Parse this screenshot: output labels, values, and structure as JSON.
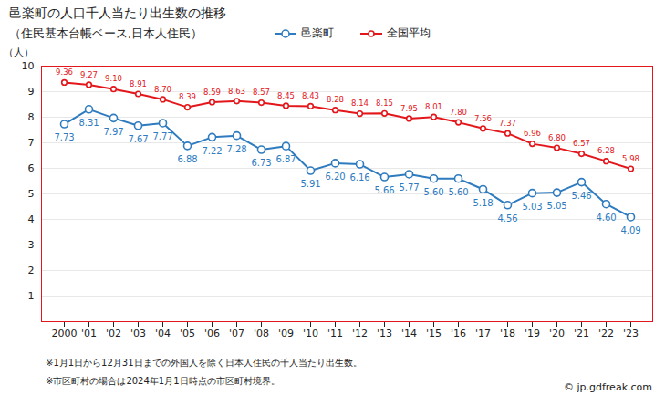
{
  "chart_data": {
    "type": "line",
    "title": "邑楽町の人口千人当たり出生数の推移",
    "subtitle": "（住民基本台帳ベース,日本人住民）",
    "y_label": "（人）",
    "notes": [
      "※1月1日から12月31日までの外国人を除く日本人住民の千人当たり出生数。",
      "※市区町村の場合は2024年1月1日時点の市区町村境界。"
    ],
    "source": "© jp.gdfreak.com",
    "categories": [
      "2000",
      "'01",
      "'02",
      "'03",
      "'04",
      "'05",
      "'06",
      "'07",
      "'08",
      "'09",
      "'10",
      "'11",
      "'12",
      "'13",
      "'14",
      "'15",
      "'16",
      "'17",
      "'18",
      "'19",
      "'20",
      "'21",
      "'22",
      "'23"
    ],
    "series": [
      {
        "name": "邑楽町",
        "color": "#2e7bbf",
        "marker": "circle",
        "values": [
          7.73,
          8.31,
          7.97,
          7.67,
          7.77,
          6.88,
          7.22,
          7.28,
          6.73,
          6.87,
          5.91,
          6.2,
          6.16,
          5.66,
          5.77,
          5.6,
          5.6,
          5.18,
          4.56,
          5.03,
          5.05,
          5.46,
          4.6,
          4.09
        ],
        "value_labels": [
          "7.73",
          "8.31",
          "7.97",
          "7.67",
          "7.77",
          "6.88",
          "7.22",
          "7.28",
          "6.73",
          "6.87",
          "5.91",
          "6.20",
          "6.16",
          "5.66",
          "5.77",
          "5.60",
          "5.60",
          "5.18",
          "4.56",
          "5.03",
          "5.05",
          "5.46",
          "4.60",
          "4.09"
        ]
      },
      {
        "name": "全国平均",
        "color": "#e3171b",
        "marker": "circle",
        "values": [
          9.36,
          9.27,
          9.1,
          8.91,
          8.7,
          8.39,
          8.59,
          8.63,
          8.57,
          8.45,
          8.43,
          8.28,
          8.14,
          8.15,
          7.95,
          8.01,
          7.8,
          7.56,
          7.37,
          6.96,
          6.8,
          6.57,
          6.28,
          5.98
        ],
        "value_labels": [
          "9.36",
          "9.27",
          "9.10",
          "8.91",
          "8.70",
          "8.39",
          "8.59",
          "8.63",
          "8.57",
          "8.45",
          "8.43",
          "8.28",
          "8.14",
          "8.15",
          "7.95",
          "8.01",
          "7.80",
          "7.56",
          "7.37",
          "6.96",
          "6.80",
          "6.57",
          "6.28",
          "5.98"
        ]
      }
    ],
    "ylim": [
      0,
      10
    ],
    "yticks": [
      1,
      2,
      3,
      4,
      5,
      6,
      7,
      8,
      9,
      10
    ],
    "grid": true,
    "legend": "top",
    "data_labels": true
  }
}
